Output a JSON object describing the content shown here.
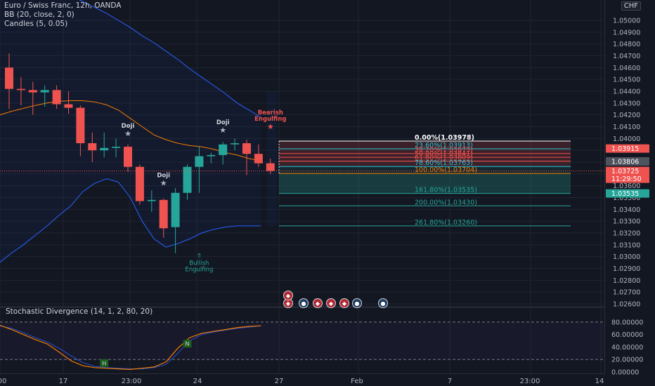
{
  "legend": {
    "symbol": "Euro / Swiss Franc, 12h, OANDA",
    "bb": "BB (20, close, 2, 0)",
    "candles": "Candles (5, 0.05)"
  },
  "currency_label": "CHF",
  "osc_title": "Stochastic Divergence (14, 1, 2, 80, 20)",
  "colors": {
    "bull": "#26a69a",
    "bear": "#ef5350",
    "bb": "#2962ff",
    "basis": "#f57c00",
    "background": "#131722",
    "grid": "#1f2430"
  },
  "price_axis": {
    "ticks": [
      "1.05000",
      "1.04900",
      "1.04800",
      "1.04700",
      "1.04600",
      "1.04500",
      "1.04400",
      "1.04300",
      "1.04200",
      "1.04100",
      "1.04000",
      "1.03900",
      "1.03800",
      "1.03700",
      "1.03600",
      "1.03500",
      "1.03400",
      "1.03300",
      "1.03200",
      "1.03100",
      "1.03000",
      "1.02900",
      "1.02800",
      "1.02700",
      "1.02600"
    ],
    "tags": [
      {
        "text": "1.03915",
        "color": "#ef5350"
      },
      {
        "text": "1.03806",
        "color": "#4f535e"
      },
      {
        "text": "1.03725",
        "color": "#ef5350"
      },
      {
        "text": "11:29:50",
        "color": "#ef5350"
      },
      {
        "text": "1.03535",
        "color": "#26a69a"
      }
    ]
  },
  "osc_axis": {
    "ticks": [
      "80.00000",
      "60.00000",
      "40.00000",
      "20.00000",
      "0.00000"
    ]
  },
  "time_axis": {
    "labels": [
      "00",
      "17",
      "23:00",
      "24",
      "27",
      "Feb",
      "7",
      "23:00",
      "14"
    ]
  },
  "fib_levels": [
    {
      "label": "0.00%(1.03978)",
      "color": "#ffffff"
    },
    {
      "label": "23.60%(1.03913)",
      "color": "#26c6da"
    },
    {
      "label": "38.20%(1.03873)",
      "color": "#ef5350"
    },
    {
      "label": "50.00%(1.03841)",
      "color": "#ef5350"
    },
    {
      "label": "61.80%(1.03809)",
      "color": "#ef5350"
    },
    {
      "label": "78.60%(1.03763)",
      "color": "#26c6da"
    },
    {
      "label": "100.00%(1.03704)",
      "color": "#f57c00"
    },
    {
      "label": "161.80%(1.03535)",
      "color": "#26a69a"
    },
    {
      "label": "200.00%(1.03430)",
      "color": "#26a69a"
    },
    {
      "label": "261.80%(1.03260)",
      "color": "#26a69a"
    }
  ],
  "patterns": [
    {
      "text": [
        "Doji"
      ],
      "color": "#d1d4dc",
      "icon": "star-icon"
    },
    {
      "text": [
        "Doji"
      ],
      "color": "#d1d4dc",
      "icon": "star-icon"
    },
    {
      "text": [
        "Doji"
      ],
      "color": "#d1d4dc",
      "icon": "star-icon"
    },
    {
      "text": [
        "Bearish",
        "Engulfing"
      ],
      "color": "#ef5350",
      "icon": "star-icon"
    },
    {
      "text": [
        "Bullish",
        "Engulfing"
      ],
      "color": "#26a69a",
      "icon": "arrow-up-icon"
    }
  ],
  "divergence_markers": [
    "H",
    "N"
  ],
  "event_icons": [
    "red-flag-icon",
    "globe-icon",
    "red-flag-icon",
    "red-flag-icon",
    "red-flag-icon",
    "globe-icon",
    "globe-icon"
  ],
  "chart_data": {
    "type": "candlestick",
    "title": "Euro / Swiss Franc, 12h, OANDA",
    "candles": [
      {
        "o": 1.046,
        "h": 1.0472,
        "l": 1.0425,
        "c": 1.0442
      },
      {
        "o": 1.0442,
        "h": 1.0452,
        "l": 1.0428,
        "c": 1.0441
      },
      {
        "o": 1.0441,
        "h": 1.0448,
        "l": 1.042,
        "c": 1.0439
      },
      {
        "o": 1.0439,
        "h": 1.0445,
        "l": 1.0427,
        "c": 1.0441
      },
      {
        "o": 1.0441,
        "h": 1.0445,
        "l": 1.0425,
        "c": 1.0429
      },
      {
        "o": 1.0429,
        "h": 1.044,
        "l": 1.0421,
        "c": 1.0426
      },
      {
        "o": 1.0426,
        "h": 1.0428,
        "l": 1.0385,
        "c": 1.0396
      },
      {
        "o": 1.0396,
        "h": 1.0405,
        "l": 1.038,
        "c": 1.039
      },
      {
        "o": 1.039,
        "h": 1.0405,
        "l": 1.0384,
        "c": 1.0392
      },
      {
        "o": 1.0392,
        "h": 1.04,
        "l": 1.0384,
        "c": 1.0393
      },
      {
        "o": 1.0393,
        "h": 1.0395,
        "l": 1.0372,
        "c": 1.0376
      },
      {
        "o": 1.0376,
        "h": 1.0378,
        "l": 1.0344,
        "c": 1.0347
      },
      {
        "o": 1.0347,
        "h": 1.0356,
        "l": 1.0338,
        "c": 1.0348
      },
      {
        "o": 1.0348,
        "h": 1.0349,
        "l": 1.0316,
        "c": 1.0324
      },
      {
        "o": 1.0325,
        "h": 1.0358,
        "l": 1.0303,
        "c": 1.0354
      },
      {
        "o": 1.0354,
        "h": 1.0378,
        "l": 1.0348,
        "c": 1.0376
      },
      {
        "o": 1.0376,
        "h": 1.0393,
        "l": 1.0354,
        "c": 1.0385
      },
      {
        "o": 1.0385,
        "h": 1.0388,
        "l": 1.0379,
        "c": 1.0386
      },
      {
        "o": 1.0386,
        "h": 1.0397,
        "l": 1.0378,
        "c": 1.0395
      },
      {
        "o": 1.0395,
        "h": 1.04,
        "l": 1.039,
        "c": 1.0396
      },
      {
        "o": 1.0396,
        "h": 1.0399,
        "l": 1.0369,
        "c": 1.0387
      },
      {
        "o": 1.0387,
        "h": 1.0395,
        "l": 1.0376,
        "c": 1.0379
      },
      {
        "o": 1.0379,
        "h": 1.0383,
        "l": 1.037,
        "c": 1.03725
      }
    ],
    "bb_upper": [
      1.0545,
      1.0542,
      1.0538,
      1.0534,
      1.053,
      1.0526,
      1.0521,
      1.0516,
      1.0511,
      1.0506,
      1.05,
      1.0494,
      1.0487,
      1.0481,
      1.0474,
      1.0467,
      1.0459,
      1.0452,
      1.0445,
      1.0438,
      1.043,
      1.0424,
      1.0418
    ],
    "bb_basis": [
      1.042,
      1.0423,
      1.04255,
      1.0428,
      1.043,
      1.04315,
      1.0432,
      1.0432,
      1.0431,
      1.04285,
      1.0424,
      1.0417,
      1.041,
      1.0403,
      1.0399,
      1.0396,
      1.0394,
      1.0393,
      1.0391,
      1.0388,
      1.0386,
      1.0383,
      1.0381
    ],
    "bb_lower": [
      1.0295,
      1.0303,
      1.031,
      1.0318,
      1.0326,
      1.0335,
      1.0343,
      1.0355,
      1.0362,
      1.0366,
      1.0363,
      1.035,
      1.033,
      1.0315,
      1.0308,
      1.0311,
      1.0315,
      1.032,
      1.0323,
      1.0325,
      1.0326,
      1.0326,
      1.0326
    ],
    "stoch": [
      75,
      68,
      60,
      52,
      45,
      32,
      18,
      10,
      7,
      6,
      5,
      4,
      6,
      8,
      16,
      38,
      55,
      62,
      65,
      68,
      71,
      73,
      74
    ],
    "stoch_signal": [
      74,
      70,
      63,
      55,
      48,
      38,
      26,
      15,
      9,
      7,
      6,
      5,
      5,
      7,
      12,
      30,
      50,
      60,
      64,
      67,
      70,
      72,
      74
    ],
    "ylim": [
      1.026,
      1.0505
    ],
    "osc_ylim": [
      0,
      90
    ]
  }
}
